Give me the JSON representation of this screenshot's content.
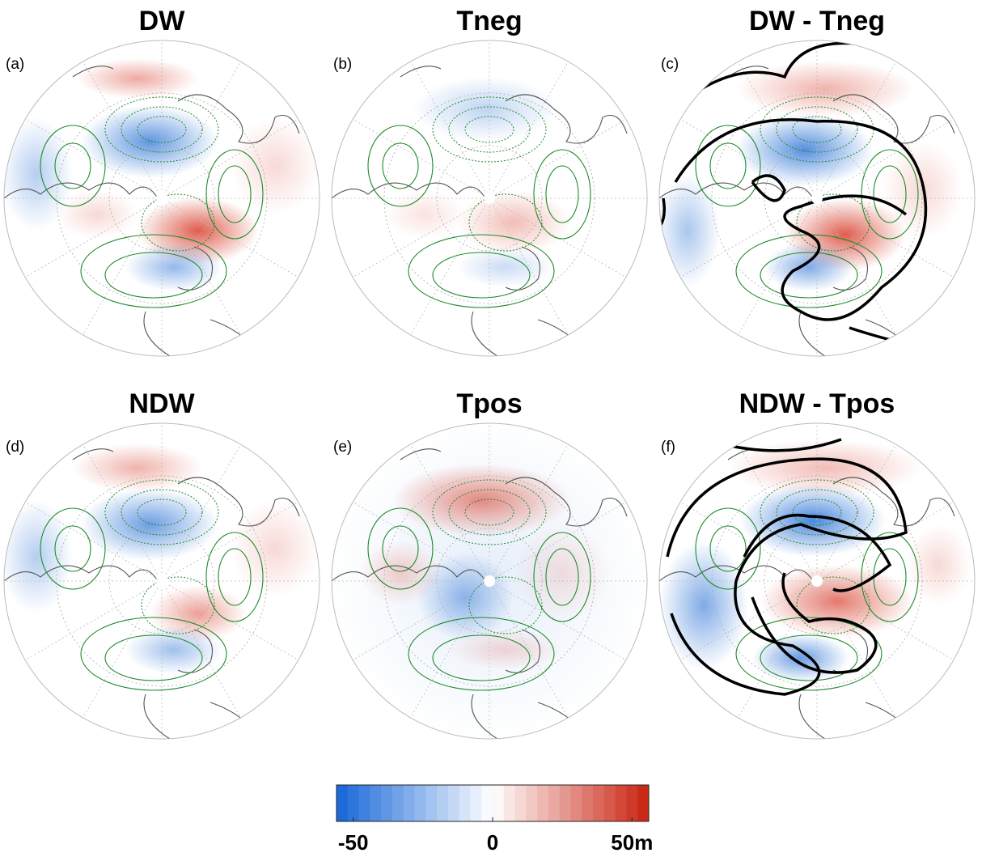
{
  "panels": [
    {
      "title": "DW",
      "label": "(a)"
    },
    {
      "title": "Tneg",
      "label": "(b)"
    },
    {
      "title": "DW - Tneg",
      "label": "(c)"
    },
    {
      "title": "NDW",
      "label": "(d)"
    },
    {
      "title": "Tpos",
      "label": "(e)"
    },
    {
      "title": "NDW - Tpos",
      "label": "(f)"
    }
  ],
  "colorbar": {
    "type": "colorbar",
    "lim": [
      -56,
      56
    ],
    "ticks": [
      -50,
      0,
      {
        "value": 50,
        "label": "50m"
      }
    ],
    "colors": [
      "#1565d8",
      "#ffffff",
      "#c8210f"
    ]
  }
}
